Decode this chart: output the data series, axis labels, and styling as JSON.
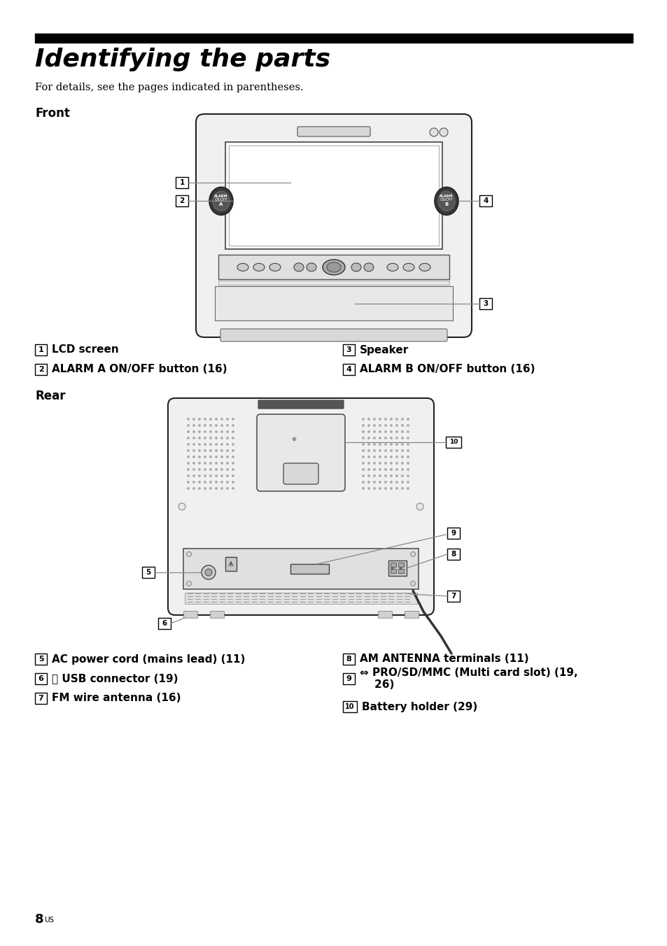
{
  "title": "Identifying the parts",
  "subtitle": "For details, see the pages indicated in parentheses.",
  "section_front": "Front",
  "section_rear": "Rear",
  "page_num": "8",
  "page_suffix": "US",
  "bg_color": "#ffffff",
  "text_color": "#000000",
  "bar_color": "#000000",
  "front_label_left": [
    {
      "num": "1",
      "text": "LCD screen"
    },
    {
      "num": "2",
      "text": "ALARM A ON/OFF button (16)"
    }
  ],
  "front_label_right": [
    {
      "num": "3",
      "text": "Speaker"
    },
    {
      "num": "4",
      "text": "ALARM B ON/OFF button (16)"
    }
  ],
  "rear_label_left": [
    {
      "num": "5",
      "text": "AC power cord (mains lead) (11)"
    },
    {
      "num": "6",
      "text": "⑆ USB connector (19)"
    },
    {
      "num": "7",
      "text": "FM wire antenna (16)"
    }
  ],
  "rear_label_right": [
    {
      "num": "8",
      "text": "AM ANTENNA terminals (11)"
    },
    {
      "num": "9",
      "text": "⇔ PRO/SD/MMC (Multi card slot) (19,\n    26)"
    },
    {
      "num": "10",
      "text": "Battery holder (29)"
    }
  ]
}
